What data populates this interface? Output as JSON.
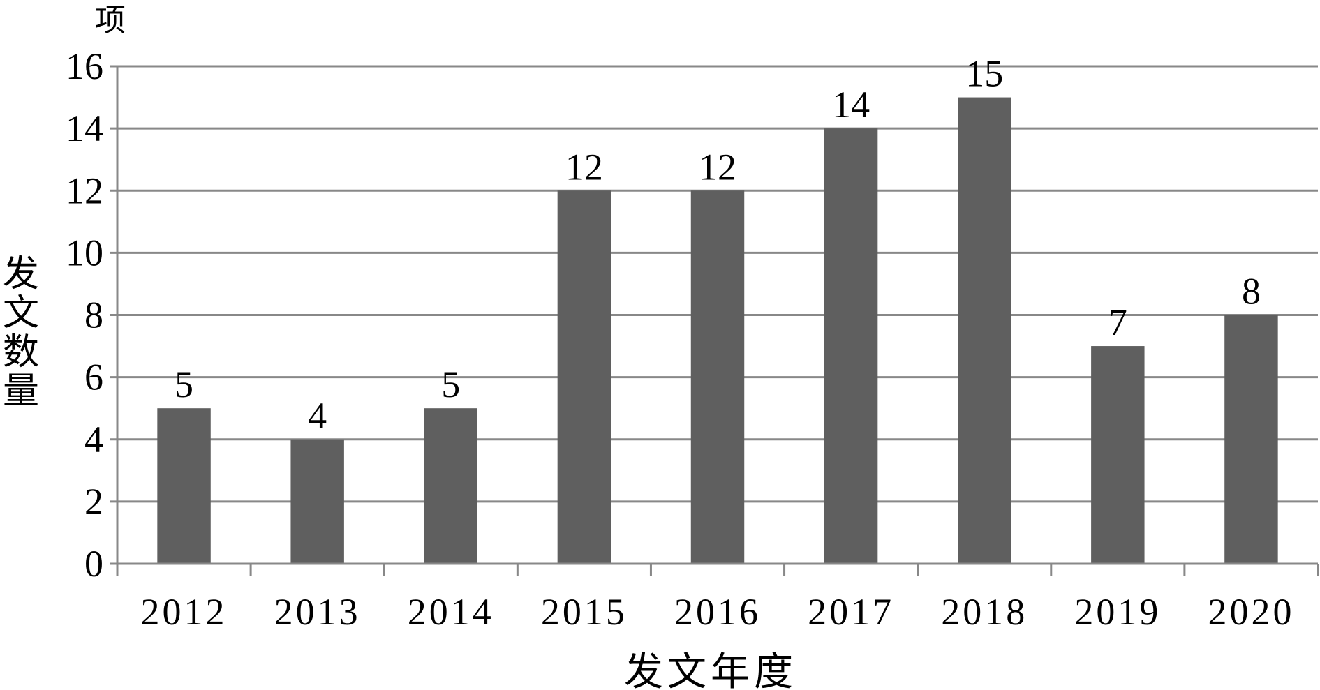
{
  "chart_data": {
    "type": "bar",
    "categories": [
      "2012",
      "2013",
      "2014",
      "2015",
      "2016",
      "2017",
      "2018",
      "2019",
      "2020"
    ],
    "values": [
      5,
      4,
      5,
      12,
      12,
      14,
      15,
      7,
      8
    ],
    "data_labels": [
      "5",
      "4",
      "5",
      "12",
      "12",
      "14",
      "15",
      "7",
      "8"
    ],
    "xlabel": "发文年度",
    "ylabel": "发文数量",
    "y_unit": "项",
    "ylim": [
      0,
      16
    ],
    "yticks": [
      "0",
      "2",
      "4",
      "6",
      "8",
      "10",
      "12",
      "14",
      "16"
    ],
    "grid": true,
    "bar_color": "#5f5f5f",
    "axis_color": "#888888"
  }
}
